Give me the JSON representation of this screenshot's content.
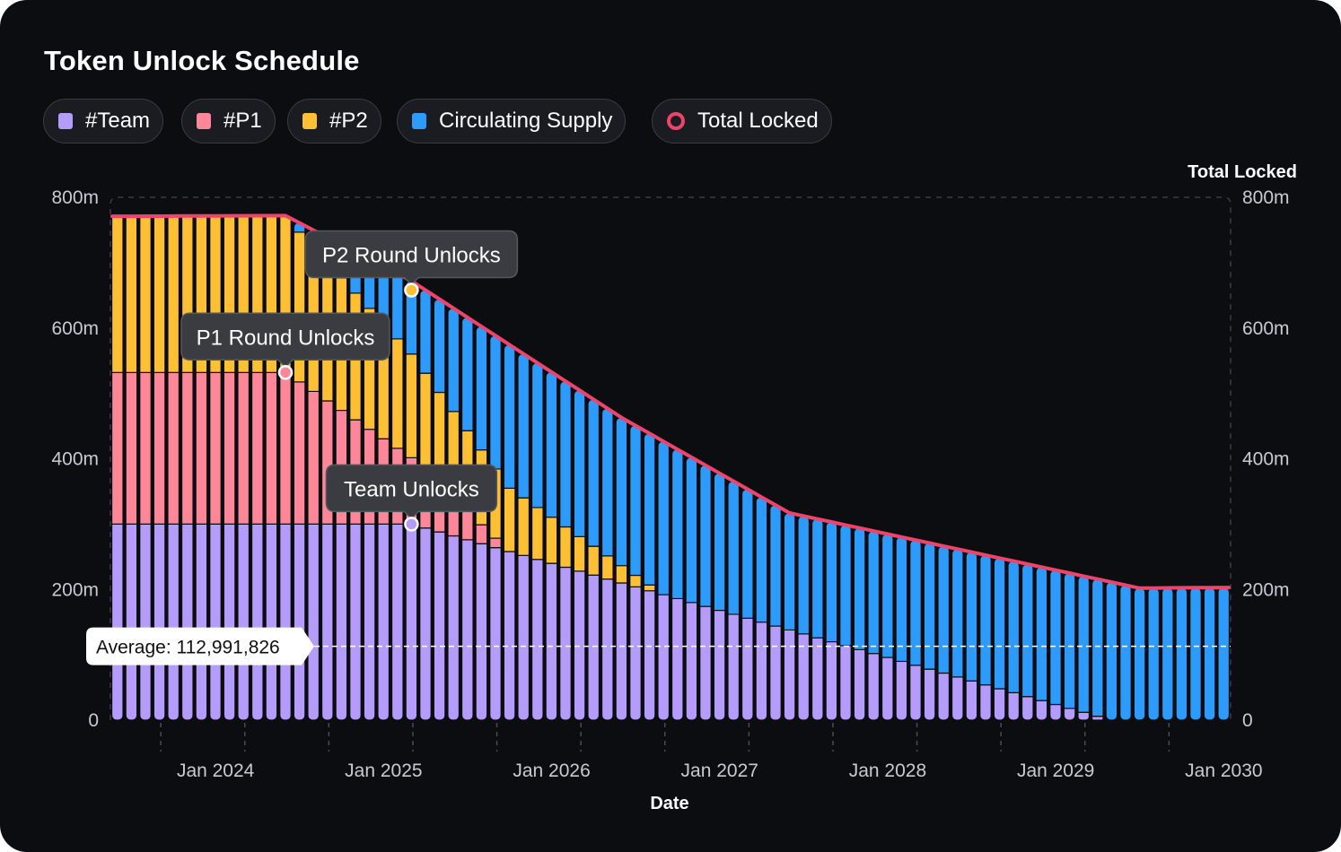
{
  "colors": {
    "team": "#b49cfb",
    "p1": "#fd8799",
    "p2": "#fdbf33",
    "circulating": "#2c9bfb",
    "total_locked": "#f0436b",
    "background": "#0c0d11"
  },
  "chart_data": {
    "type": "bar",
    "stacked": true,
    "title": "Token Unlock Schedule",
    "xlabel": "Date",
    "ylabel_right": "Total Locked",
    "ylim": [
      0,
      800000000
    ],
    "y_ticks": [
      "0",
      "200m",
      "400m",
      "600m",
      "800m"
    ],
    "x_ticks": [
      "Jan 2024",
      "Jan 2025",
      "Jan 2026",
      "Jan 2027",
      "Jan 2028",
      "Jan 2029",
      "Jan 2030"
    ],
    "x_start": "2023-09",
    "x_interval": "month",
    "bar_count": 80,
    "legend_position": "top-left",
    "grid": false,
    "series": [
      {
        "key": "team",
        "name": "#Team",
        "color": "#b49cfb",
        "description": "constant 300m until Jun 2025, then linear vesting to 0 by Aug 2029"
      },
      {
        "key": "p1",
        "name": "#P1",
        "color": "#fd8799",
        "description": "constant 232m until Jan 2024-Jan 2025 cliff, then linear vesting to 0 by Jan 2026"
      },
      {
        "key": "p2",
        "name": "#P2",
        "color": "#fdbf33",
        "description": "constant 238m, linear vesting from Jan 2024 to 0 by Dec 2026"
      },
      {
        "key": "circulating",
        "name": "Circulating Supply",
        "color": "#2c9bfb"
      },
      {
        "key": "total_locked",
        "name": "Total Locked",
        "color": "#f0436b",
        "type": "line"
      }
    ],
    "total_locked_keypoints": [
      {
        "date": "2023-09",
        "value": 771000000
      },
      {
        "date": "2024-09",
        "value": 772000000
      },
      {
        "date": "2025-06",
        "value": 672000000
      },
      {
        "date": "2026-09",
        "value": 463000000
      },
      {
        "date": "2027-09",
        "value": 317000000
      },
      {
        "date": "2029-10",
        "value": 202000000
      },
      {
        "date": "2030-04",
        "value": 203000000
      }
    ],
    "annotations": [
      {
        "label": "P1 Round Unlocks",
        "date": "2024-09",
        "value": 532000000,
        "series": "p1"
      },
      {
        "label": "P2 Round Unlocks",
        "date": "2025-06",
        "value": 658000000,
        "series": "p2"
      },
      {
        "label": "Team Unlocks",
        "date": "2025-06",
        "value": 300000000,
        "series": "team"
      }
    ],
    "average": {
      "label": "Average: 112,991,826",
      "value": 112991826
    }
  },
  "legend": [
    {
      "label": "#Team",
      "series": "team",
      "marker": "square"
    },
    {
      "label": "#P1",
      "series": "p1",
      "marker": "square"
    },
    {
      "label": "#P2",
      "series": "p2",
      "marker": "square"
    },
    {
      "label": "Circulating Supply",
      "series": "circulating",
      "marker": "square"
    },
    {
      "label": "Total Locked",
      "series": "total_locked",
      "marker": "ring"
    }
  ]
}
